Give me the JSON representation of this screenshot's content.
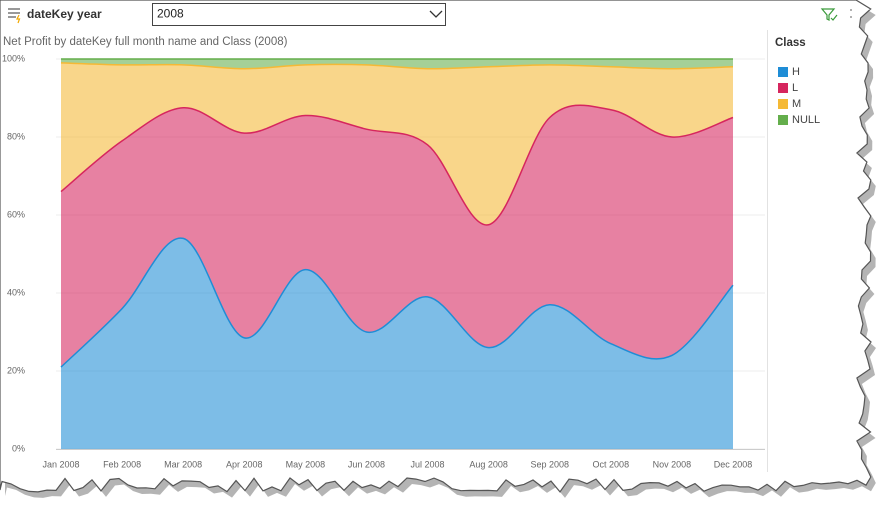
{
  "filter": {
    "label": "dateKey year",
    "selected": "2008"
  },
  "chart_data": {
    "type": "area",
    "stacked": true,
    "title": "Net Profit by dateKey full month name and Class (2008)",
    "legend_title": "Class",
    "categories": [
      "Jan 2008",
      "Feb 2008",
      "Mar 2008",
      "Apr 2008",
      "May 2008",
      "Jun 2008",
      "Jul 2008",
      "Aug 2008",
      "Sep 2008",
      "Oct 2008",
      "Nov 2008",
      "Dec 2008"
    ],
    "series": [
      {
        "name": "H",
        "color": "#1f8dd6",
        "values": [
          21,
          36,
          54,
          28.5,
          46,
          30,
          39,
          26,
          37,
          27,
          24,
          42
        ]
      },
      {
        "name": "L",
        "color": "#d6265e",
        "values": [
          45,
          43,
          33.5,
          52.5,
          39.5,
          52,
          39,
          31.5,
          48,
          60,
          56,
          43
        ]
      },
      {
        "name": "M",
        "color": "#f5b935",
        "values": [
          33,
          19.5,
          11,
          16.5,
          13,
          16.5,
          19.5,
          40.5,
          13.5,
          11,
          17.5,
          13
        ]
      },
      {
        "name": "NULL",
        "color": "#64ae4c",
        "values": [
          1,
          1.5,
          1.5,
          2.5,
          1.5,
          1.5,
          2.5,
          2,
          1.5,
          2,
          2.5,
          2
        ]
      }
    ],
    "ylim": [
      0,
      100
    ],
    "yticks": [
      {
        "value": 0,
        "label": "0%"
      },
      {
        "value": 20,
        "label": "20%"
      },
      {
        "value": 40,
        "label": "40%"
      },
      {
        "value": 60,
        "label": "60%"
      },
      {
        "value": 80,
        "label": "80%"
      },
      {
        "value": 100,
        "label": "100%"
      }
    ],
    "grid": true
  }
}
